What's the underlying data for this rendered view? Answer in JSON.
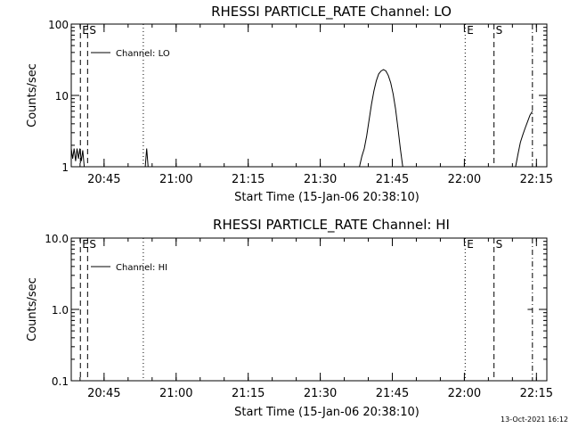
{
  "chart_data": [
    {
      "type": "line",
      "title": "RHESSI PARTICLE_RATE Channel: LO",
      "xlabel": "Start Time (15-Jan-06 20:38:10)",
      "ylabel": "Counts/sec",
      "yscale": "log",
      "ylim": [
        1,
        100
      ],
      "xlim_minutes": [
        0,
        99
      ],
      "x_tick_labels": [
        "20:45",
        "21:00",
        "21:15",
        "21:30",
        "21:45",
        "22:00",
        "22:15"
      ],
      "y_tick_labels": [
        "1",
        "10",
        "100"
      ],
      "y_ticks": [
        1,
        10,
        100
      ],
      "grid": false,
      "legend": {
        "entries": [
          "Channel: LO"
        ],
        "position": "top-left"
      },
      "markers": [
        {
          "label": "E",
          "minute": 1.9,
          "style": "dashed"
        },
        {
          "label": "S",
          "minute": 3.4,
          "style": "dashed"
        },
        {
          "label": "",
          "minute": 15.0,
          "style": "dotted"
        },
        {
          "label": "E",
          "minute": 82.0,
          "style": "dotted"
        },
        {
          "label": "S",
          "minute": 88.0,
          "style": "dashed"
        },
        {
          "label": "",
          "minute": 96.0,
          "style": "dashdot"
        }
      ],
      "series": [
        {
          "name": "Channel: LO",
          "points": [
            [
              0,
              1.8
            ],
            [
              0.3,
              1.3
            ],
            [
              0.6,
              1.8
            ],
            [
              0.9,
              1.2
            ],
            [
              1.2,
              1.8
            ],
            [
              1.5,
              1.3
            ],
            [
              1.8,
              1.8
            ],
            [
              2.1,
              1.2
            ],
            [
              2.4,
              1.7
            ],
            [
              2.7,
              1.0
            ],
            [
              15.4,
              1.0
            ],
            [
              15.7,
              1.8
            ],
            [
              16.0,
              1.0
            ],
            [
              60.0,
              1.0
            ],
            [
              60.5,
              1.4
            ],
            [
              61.0,
              1.8
            ],
            [
              61.5,
              2.7
            ],
            [
              62.0,
              4.5
            ],
            [
              62.5,
              7.5
            ],
            [
              63.0,
              11.5
            ],
            [
              63.5,
              16
            ],
            [
              64.0,
              20
            ],
            [
              64.5,
              22
            ],
            [
              65.0,
              23
            ],
            [
              65.5,
              22
            ],
            [
              66.0,
              19
            ],
            [
              66.5,
              15
            ],
            [
              67.0,
              10.5
            ],
            [
              67.5,
              6.5
            ],
            [
              68.0,
              3.5
            ],
            [
              68.5,
              1.8
            ],
            [
              69.0,
              1.0
            ],
            [
              92.5,
              1.0
            ],
            [
              93.0,
              1.5
            ],
            [
              93.5,
              2.2
            ],
            [
              94.0,
              2.8
            ],
            [
              94.5,
              3.5
            ],
            [
              95.0,
              4.3
            ],
            [
              95.5,
              5.3
            ],
            [
              96.0,
              6.0
            ]
          ]
        }
      ]
    },
    {
      "type": "line",
      "title": "RHESSI PARTICLE_RATE Channel: HI",
      "xlabel": "Start Time (15-Jan-06 20:38:10)",
      "ylabel": "Counts/sec",
      "yscale": "log",
      "ylim": [
        0.1,
        10
      ],
      "xlim_minutes": [
        0,
        99
      ],
      "x_tick_labels": [
        "20:45",
        "21:00",
        "21:15",
        "21:30",
        "21:45",
        "22:00",
        "22:15"
      ],
      "y_tick_labels": [
        "0.1",
        "1.0",
        "10.0"
      ],
      "y_ticks": [
        0.1,
        1,
        10
      ],
      "grid": false,
      "legend": {
        "entries": [
          "Channel: HI"
        ],
        "position": "top-left"
      },
      "markers": [
        {
          "label": "E",
          "minute": 1.9,
          "style": "dashed"
        },
        {
          "label": "S",
          "minute": 3.4,
          "style": "dashed"
        },
        {
          "label": "",
          "minute": 15.0,
          "style": "dotted"
        },
        {
          "label": "E",
          "minute": 82.0,
          "style": "dotted"
        },
        {
          "label": "S",
          "minute": 88.0,
          "style": "dashed"
        },
        {
          "label": "",
          "minute": 96.0,
          "style": "dashdot"
        }
      ],
      "series": [
        {
          "name": "Channel: HI",
          "points": [
            [
              95.0,
              1.0
            ],
            [
              96.0,
              1.0
            ]
          ]
        }
      ]
    }
  ],
  "footer": {
    "date": "13-Oct-2021 16:12"
  }
}
